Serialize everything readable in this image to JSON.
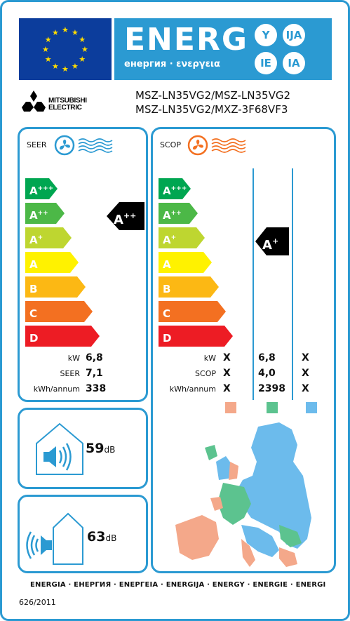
{
  "header": {
    "title": "ENERG",
    "subtitle": "енергия · ενεργεια",
    "lang_codes": [
      "Y",
      "IJA",
      "IE",
      "IA"
    ]
  },
  "brand": {
    "name_line1": "MITSUBISHI",
    "name_line2": "ELECTRIC",
    "model_line1": "MSZ-LN35VG2/MSZ-LN35VG2",
    "model_line2": "MSZ-LN35VG2/MXZ-3F68VF3"
  },
  "cooling": {
    "title": "SEER",
    "classes": [
      {
        "letter": "A",
        "sup": "+++",
        "color": "#00a651"
      },
      {
        "letter": "A",
        "sup": "++",
        "color": "#4cb847"
      },
      {
        "letter": "A",
        "sup": "+",
        "color": "#bed630"
      },
      {
        "letter": "A",
        "sup": "",
        "color": "#fff200"
      },
      {
        "letter": "B",
        "sup": "",
        "color": "#fcb814"
      },
      {
        "letter": "C",
        "sup": "",
        "color": "#f37021"
      },
      {
        "letter": "D",
        "sup": "",
        "color": "#ed1c24"
      }
    ],
    "rating": {
      "letter": "A",
      "sup": "++"
    },
    "rows": [
      {
        "label": "kW",
        "value": "6,8"
      },
      {
        "label": "SEER",
        "value": "7,1"
      },
      {
        "label": "kWh/annum",
        "value": "338"
      }
    ]
  },
  "heating": {
    "title": "SCOP",
    "classes": [
      {
        "letter": "A",
        "sup": "+++",
        "color": "#00a651"
      },
      {
        "letter": "A",
        "sup": "++",
        "color": "#4cb847"
      },
      {
        "letter": "A",
        "sup": "+",
        "color": "#bed630"
      },
      {
        "letter": "A",
        "sup": "",
        "color": "#fff200"
      },
      {
        "letter": "B",
        "sup": "",
        "color": "#fcb814"
      },
      {
        "letter": "C",
        "sup": "",
        "color": "#f37021"
      },
      {
        "letter": "D",
        "sup": "",
        "color": "#ed1c24"
      }
    ],
    "rating": {
      "letter": "A",
      "sup": "+"
    },
    "rows": [
      {
        "label": "kW",
        "cols": [
          "X",
          "6,8",
          "X"
        ]
      },
      {
        "label": "SCOP",
        "cols": [
          "X",
          "4,0",
          "X"
        ]
      },
      {
        "label": "kWh/annum",
        "cols": [
          "X",
          "2398",
          "X"
        ]
      }
    ],
    "zone_colors": [
      "#f4a88a",
      "#5cc38f",
      "#6cbbec"
    ]
  },
  "noise": {
    "indoor": {
      "value": "59",
      "unit": "dB"
    },
    "outdoor": {
      "value": "63",
      "unit": "dB"
    }
  },
  "footer": {
    "languages": "ENERGIA · ЕНЕРГИЯ · ΕΝΕΡΓΕΙΑ · ENERGIJA · ENERGY · ENERGIE · ENERGI",
    "regulation": "626/2011"
  },
  "icons": {
    "fan_cool": "fan-cooling-icon",
    "fan_heat": "fan-heating-icon",
    "indoor_speaker": "indoor-speaker-icon",
    "outdoor_speaker": "outdoor-speaker-icon",
    "europe_map": "europe-climate-map"
  }
}
